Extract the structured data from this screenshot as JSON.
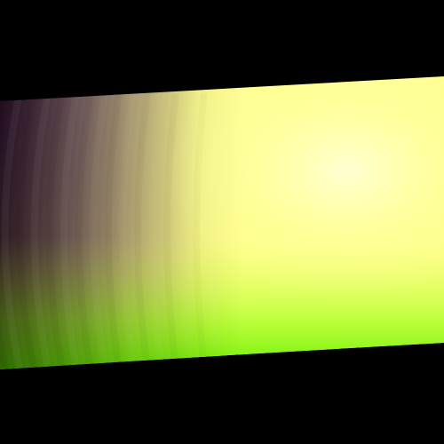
{
  "scene": {
    "subject": "shaded-cylinder",
    "background_color": "#000000",
    "colors": {
      "top_far_left": "#4a1a4a",
      "top_mid_left": "#9a7a80",
      "top_right": "#ffff90",
      "highlight": "#ffffd8",
      "center": "#ffff6a",
      "bottom_left": "#226600",
      "bottom_mid": "#66ee00",
      "bottom_right": "#aaff22",
      "right_mid": "#eaff3a"
    },
    "shading": "banded-gradient"
  }
}
